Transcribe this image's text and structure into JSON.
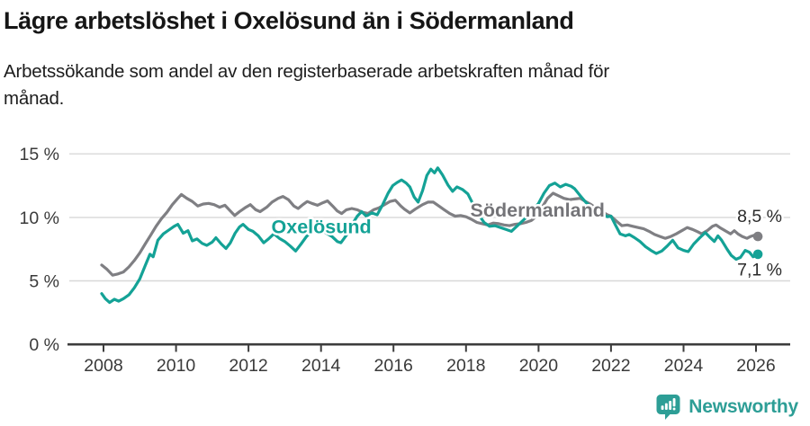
{
  "header": {
    "title": "Lägre arbetslöshet i Oxelösund än i Södermanland",
    "subtitle": "Arbetssökande som andel av den registerbaserade arbetskraften månad för månad."
  },
  "footer": {
    "brand": "Newsworthy",
    "brand_color": "#2d9e96",
    "logo_icon": "newsworthy-speech-bubble-barchart-icon"
  },
  "colors": {
    "oxelosund": "#14a296",
    "sodermanland": "#7f7f83",
    "oxelosund_label": "#14a296",
    "sodermanland_label": "#747478",
    "gridline": "#d8d8d8",
    "axis": "#3d3d3d",
    "tick_text": "#3a3a3a",
    "end_label_text": "#2b2b2b",
    "background": "#ffffff"
  },
  "chart_data": {
    "type": "line",
    "title": "Lägre arbetslöshet i Oxelösund än i Södermanland",
    "subtitle": "Arbetssökande som andel av den registerbaserade arbetskraften månad för månad.",
    "unit": "%",
    "grid": "horizontal-only",
    "legend_position": "inline-labels-on-lines",
    "x_axis": {
      "range": [
        2007.85,
        2026.95
      ],
      "ticks": [
        {
          "year": 2008,
          "label": "2008"
        },
        {
          "year": 2010,
          "label": "2010"
        },
        {
          "year": 2012,
          "label": "2012"
        },
        {
          "year": 2014,
          "label": "2014"
        },
        {
          "year": 2016,
          "label": "2016"
        },
        {
          "year": 2018,
          "label": "2018"
        },
        {
          "year": 2020,
          "label": "2020"
        },
        {
          "year": 2022,
          "label": "2022"
        },
        {
          "year": 2024,
          "label": "2024"
        },
        {
          "year": 2026,
          "label": "2026"
        }
      ]
    },
    "y_axis": {
      "range": [
        0,
        15.7
      ],
      "ticks": [
        {
          "value": 0,
          "label": "0 %"
        },
        {
          "value": 5,
          "label": "5 %"
        },
        {
          "value": 10,
          "label": "10 %"
        },
        {
          "value": 15,
          "label": "15 %"
        }
      ],
      "gridlines": [
        5,
        10,
        15
      ]
    },
    "series": [
      {
        "id": "sodermanland",
        "name": "Södermanland",
        "color": "#7f7f83",
        "label_color": "#747478",
        "end_label": "8,5 %",
        "end_value": 8.5,
        "label_anchor": {
          "year": 2019.97,
          "value": 10.05
        },
        "end_label_anchor": {
          "year": 2025.48,
          "value": 9.62
        },
        "points": [
          [
            2007.95,
            6.25
          ],
          [
            2008.1,
            5.9
          ],
          [
            2008.25,
            5.45
          ],
          [
            2008.4,
            5.55
          ],
          [
            2008.55,
            5.7
          ],
          [
            2008.7,
            6.1
          ],
          [
            2008.85,
            6.6
          ],
          [
            2009.0,
            7.2
          ],
          [
            2009.15,
            7.9
          ],
          [
            2009.3,
            8.6
          ],
          [
            2009.45,
            9.3
          ],
          [
            2009.6,
            9.9
          ],
          [
            2009.75,
            10.4
          ],
          [
            2009.9,
            11.0
          ],
          [
            2010.05,
            11.5
          ],
          [
            2010.15,
            11.8
          ],
          [
            2010.3,
            11.5
          ],
          [
            2010.45,
            11.25
          ],
          [
            2010.6,
            10.9
          ],
          [
            2010.75,
            11.05
          ],
          [
            2010.9,
            11.1
          ],
          [
            2011.05,
            11.0
          ],
          [
            2011.2,
            10.8
          ],
          [
            2011.35,
            10.95
          ],
          [
            2011.5,
            10.5
          ],
          [
            2011.62,
            10.15
          ],
          [
            2011.75,
            10.45
          ],
          [
            2011.9,
            10.75
          ],
          [
            2012.05,
            11.0
          ],
          [
            2012.2,
            10.6
          ],
          [
            2012.32,
            10.45
          ],
          [
            2012.5,
            10.8
          ],
          [
            2012.65,
            11.2
          ],
          [
            2012.82,
            11.5
          ],
          [
            2012.95,
            11.65
          ],
          [
            2013.1,
            11.4
          ],
          [
            2013.25,
            10.9
          ],
          [
            2013.37,
            10.7
          ],
          [
            2013.5,
            11.0
          ],
          [
            2013.62,
            11.25
          ],
          [
            2013.75,
            11.1
          ],
          [
            2013.9,
            10.95
          ],
          [
            2014.05,
            11.15
          ],
          [
            2014.18,
            11.3
          ],
          [
            2014.32,
            10.9
          ],
          [
            2014.45,
            10.5
          ],
          [
            2014.57,
            10.3
          ],
          [
            2014.7,
            10.6
          ],
          [
            2014.85,
            10.7
          ],
          [
            2015.0,
            10.6
          ],
          [
            2015.15,
            10.4
          ],
          [
            2015.3,
            10.3
          ],
          [
            2015.45,
            10.6
          ],
          [
            2015.6,
            10.75
          ],
          [
            2015.75,
            11.0
          ],
          [
            2015.9,
            11.25
          ],
          [
            2016.05,
            11.35
          ],
          [
            2016.2,
            10.9
          ],
          [
            2016.3,
            10.65
          ],
          [
            2016.45,
            10.35
          ],
          [
            2016.6,
            10.65
          ],
          [
            2016.8,
            11.0
          ],
          [
            2016.95,
            11.2
          ],
          [
            2017.1,
            11.2
          ],
          [
            2017.25,
            10.9
          ],
          [
            2017.4,
            10.6
          ],
          [
            2017.55,
            10.3
          ],
          [
            2017.7,
            10.1
          ],
          [
            2017.85,
            10.15
          ],
          [
            2018.0,
            10.05
          ],
          [
            2018.15,
            9.85
          ],
          [
            2018.3,
            9.6
          ],
          [
            2018.45,
            9.5
          ],
          [
            2018.6,
            9.4
          ],
          [
            2018.75,
            9.55
          ],
          [
            2018.9,
            9.5
          ],
          [
            2019.05,
            9.4
          ],
          [
            2019.2,
            9.35
          ],
          [
            2019.35,
            9.45
          ],
          [
            2019.5,
            9.5
          ],
          [
            2019.65,
            9.6
          ],
          [
            2019.8,
            9.75
          ],
          [
            2019.95,
            10.1
          ],
          [
            2020.1,
            10.8
          ],
          [
            2020.25,
            11.5
          ],
          [
            2020.4,
            11.9
          ],
          [
            2020.55,
            11.7
          ],
          [
            2020.7,
            11.5
          ],
          [
            2020.85,
            11.4
          ],
          [
            2021.0,
            11.45
          ],
          [
            2021.15,
            11.5
          ],
          [
            2021.3,
            11.25
          ],
          [
            2021.45,
            11.0
          ],
          [
            2021.6,
            10.7
          ],
          [
            2021.75,
            10.45
          ],
          [
            2021.9,
            10.2
          ],
          [
            2022.0,
            10.1
          ],
          [
            2022.15,
            9.7
          ],
          [
            2022.3,
            9.35
          ],
          [
            2022.45,
            9.4
          ],
          [
            2022.6,
            9.3
          ],
          [
            2022.75,
            9.2
          ],
          [
            2022.9,
            9.1
          ],
          [
            2023.05,
            8.9
          ],
          [
            2023.2,
            8.65
          ],
          [
            2023.35,
            8.5
          ],
          [
            2023.5,
            8.35
          ],
          [
            2023.65,
            8.5
          ],
          [
            2023.8,
            8.7
          ],
          [
            2023.95,
            8.95
          ],
          [
            2024.1,
            9.2
          ],
          [
            2024.25,
            9.05
          ],
          [
            2024.4,
            8.85
          ],
          [
            2024.5,
            8.7
          ],
          [
            2024.65,
            8.95
          ],
          [
            2024.8,
            9.3
          ],
          [
            2024.9,
            9.4
          ],
          [
            2025.0,
            9.2
          ],
          [
            2025.15,
            8.95
          ],
          [
            2025.3,
            8.7
          ],
          [
            2025.4,
            8.95
          ],
          [
            2025.5,
            8.7
          ],
          [
            2025.62,
            8.5
          ],
          [
            2025.75,
            8.35
          ],
          [
            2025.85,
            8.5
          ],
          [
            2025.95,
            8.6
          ],
          [
            2026.05,
            8.5
          ]
        ]
      },
      {
        "id": "oxelosund",
        "name": "Oxelösund",
        "color": "#14a296",
        "label_color": "#14a296",
        "end_label": "7,1 %",
        "end_value": 7.1,
        "label_anchor": {
          "year": 2014.01,
          "value": 8.74
        },
        "end_label_anchor": {
          "year": 2025.48,
          "value": 5.41
        },
        "points": [
          [
            2007.95,
            4.0
          ],
          [
            2008.05,
            3.6
          ],
          [
            2008.17,
            3.3
          ],
          [
            2008.3,
            3.55
          ],
          [
            2008.42,
            3.4
          ],
          [
            2008.55,
            3.6
          ],
          [
            2008.7,
            3.9
          ],
          [
            2008.85,
            4.45
          ],
          [
            2009.0,
            5.15
          ],
          [
            2009.15,
            6.2
          ],
          [
            2009.28,
            7.1
          ],
          [
            2009.37,
            6.9
          ],
          [
            2009.5,
            8.2
          ],
          [
            2009.65,
            8.7
          ],
          [
            2009.8,
            9.0
          ],
          [
            2009.95,
            9.3
          ],
          [
            2010.05,
            9.45
          ],
          [
            2010.2,
            8.75
          ],
          [
            2010.33,
            8.95
          ],
          [
            2010.45,
            8.15
          ],
          [
            2010.58,
            8.3
          ],
          [
            2010.72,
            7.95
          ],
          [
            2010.85,
            7.8
          ],
          [
            2011.0,
            8.05
          ],
          [
            2011.1,
            8.4
          ],
          [
            2011.25,
            7.9
          ],
          [
            2011.38,
            7.55
          ],
          [
            2011.5,
            8.0
          ],
          [
            2011.63,
            8.75
          ],
          [
            2011.75,
            9.25
          ],
          [
            2011.85,
            9.45
          ],
          [
            2012.0,
            9.05
          ],
          [
            2012.12,
            8.9
          ],
          [
            2012.27,
            8.55
          ],
          [
            2012.42,
            8.0
          ],
          [
            2012.55,
            8.3
          ],
          [
            2012.7,
            8.7
          ],
          [
            2012.85,
            8.35
          ],
          [
            2013.0,
            8.1
          ],
          [
            2013.15,
            7.75
          ],
          [
            2013.3,
            7.35
          ],
          [
            2013.45,
            7.9
          ],
          [
            2013.6,
            8.5
          ],
          [
            2013.75,
            8.95
          ],
          [
            2013.88,
            9.15
          ],
          [
            2014.0,
            9.0
          ],
          [
            2014.15,
            8.75
          ],
          [
            2014.3,
            8.5
          ],
          [
            2014.45,
            8.1
          ],
          [
            2014.55,
            8.0
          ],
          [
            2014.7,
            8.6
          ],
          [
            2014.85,
            9.4
          ],
          [
            2015.0,
            10.1
          ],
          [
            2015.12,
            10.45
          ],
          [
            2015.25,
            10.1
          ],
          [
            2015.4,
            10.35
          ],
          [
            2015.55,
            10.2
          ],
          [
            2015.7,
            11.0
          ],
          [
            2015.85,
            11.9
          ],
          [
            2015.98,
            12.5
          ],
          [
            2016.1,
            12.75
          ],
          [
            2016.22,
            12.95
          ],
          [
            2016.35,
            12.7
          ],
          [
            2016.45,
            12.4
          ],
          [
            2016.57,
            11.6
          ],
          [
            2016.68,
            11.2
          ],
          [
            2016.8,
            12.1
          ],
          [
            2016.92,
            13.3
          ],
          [
            2017.03,
            13.8
          ],
          [
            2017.13,
            13.5
          ],
          [
            2017.22,
            13.9
          ],
          [
            2017.35,
            13.35
          ],
          [
            2017.5,
            12.55
          ],
          [
            2017.63,
            12.05
          ],
          [
            2017.75,
            12.4
          ],
          [
            2017.9,
            12.2
          ],
          [
            2018.05,
            11.85
          ],
          [
            2018.2,
            11.0
          ],
          [
            2018.35,
            10.2
          ],
          [
            2018.5,
            9.6
          ],
          [
            2018.65,
            9.3
          ],
          [
            2018.8,
            9.35
          ],
          [
            2018.95,
            9.2
          ],
          [
            2019.1,
            9.05
          ],
          [
            2019.25,
            8.9
          ],
          [
            2019.4,
            9.3
          ],
          [
            2019.55,
            9.7
          ],
          [
            2019.7,
            10.1
          ],
          [
            2019.85,
            10.6
          ],
          [
            2020.0,
            11.1
          ],
          [
            2020.15,
            11.9
          ],
          [
            2020.3,
            12.5
          ],
          [
            2020.45,
            12.7
          ],
          [
            2020.6,
            12.4
          ],
          [
            2020.75,
            12.6
          ],
          [
            2020.9,
            12.45
          ],
          [
            2021.0,
            12.25
          ],
          [
            2021.15,
            11.7
          ],
          [
            2021.3,
            11.2
          ],
          [
            2021.45,
            10.8
          ],
          [
            2021.6,
            10.5
          ],
          [
            2021.75,
            10.3
          ],
          [
            2021.9,
            10.05
          ],
          [
            2022.0,
            10.1
          ],
          [
            2022.12,
            9.4
          ],
          [
            2022.25,
            8.7
          ],
          [
            2022.4,
            8.55
          ],
          [
            2022.5,
            8.65
          ],
          [
            2022.65,
            8.4
          ],
          [
            2022.8,
            8.1
          ],
          [
            2022.95,
            7.7
          ],
          [
            2023.1,
            7.4
          ],
          [
            2023.25,
            7.15
          ],
          [
            2023.4,
            7.35
          ],
          [
            2023.55,
            7.75
          ],
          [
            2023.7,
            8.2
          ],
          [
            2023.85,
            7.6
          ],
          [
            2024.0,
            7.4
          ],
          [
            2024.13,
            7.3
          ],
          [
            2024.28,
            7.9
          ],
          [
            2024.45,
            8.4
          ],
          [
            2024.6,
            8.8
          ],
          [
            2024.72,
            8.45
          ],
          [
            2024.85,
            8.1
          ],
          [
            2024.95,
            8.55
          ],
          [
            2025.05,
            8.2
          ],
          [
            2025.2,
            7.5
          ],
          [
            2025.32,
            7.0
          ],
          [
            2025.45,
            6.7
          ],
          [
            2025.57,
            6.85
          ],
          [
            2025.7,
            7.4
          ],
          [
            2025.82,
            7.25
          ],
          [
            2025.92,
            6.9
          ],
          [
            2026.05,
            7.1
          ]
        ]
      }
    ]
  }
}
